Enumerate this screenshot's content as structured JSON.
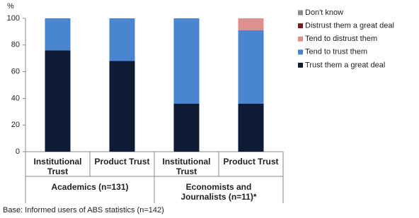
{
  "chart_data": {
    "type": "stacked-bar",
    "y_label": "%",
    "categories": [
      "Institutional Trust",
      "Product Trust",
      "Institutional Trust",
      "Product Trust"
    ],
    "groups": [
      "Academics (n=131)",
      "Economists and Journalists (n=11)*"
    ],
    "series": [
      {
        "name": "Trust them a great deal",
        "color": "#0e1b35",
        "values": [
          76,
          68,
          36,
          36
        ]
      },
      {
        "name": "Tend to trust them",
        "color": "#4a86d0",
        "values": [
          24,
          32,
          64,
          55
        ]
      },
      {
        "name": "Tend to distrust them",
        "color": "#df8f8f",
        "values": [
          0,
          0,
          0,
          9
        ]
      },
      {
        "name": "Distrust them a great deal",
        "color": "#7a1b1b",
        "values": [
          0,
          0,
          0,
          0
        ]
      },
      {
        "name": "Don't know",
        "color": "#8c8c8c",
        "values": [
          0,
          0,
          0,
          0
        ]
      }
    ],
    "ylim": [
      0,
      100
    ],
    "yticks": [
      0,
      20,
      40,
      60,
      80,
      100
    ],
    "footnote": "Base: Informed users of ABS statistics (n=142)"
  }
}
